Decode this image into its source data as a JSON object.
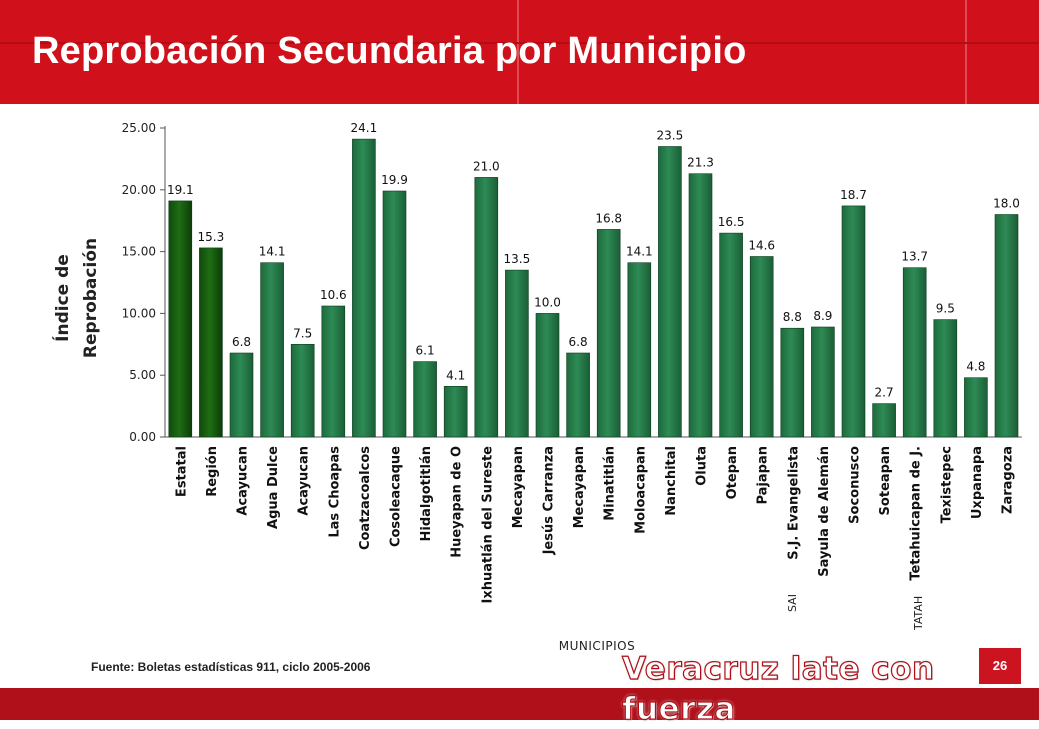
{
  "header": {
    "title": "Reprobación Secundaria por Municipio"
  },
  "colors": {
    "header_red": "#d0101a",
    "bar_dark_green": "#1f6e14",
    "bar_green": "#2e8b55",
    "footer_red": "#b0101a"
  },
  "chart_data": {
    "type": "bar",
    "title": "",
    "xlabel": "MUNICIPIOS",
    "ylabel": "Índice de Reprobación",
    "ylim": [
      0,
      25
    ],
    "yticks": [
      "0.00",
      "5.00",
      "10.00",
      "15.00",
      "20.00",
      "25.00"
    ],
    "grid": false,
    "categories": [
      "Estatal",
      "Región",
      "Acayucan",
      "Agua Dulce",
      "Acayucan",
      "Las Choapas",
      "Coatzacoalcos",
      "Cosoleacaque",
      "Hidalgotitlán",
      "Hueyapan de O",
      "Ixhuatlán del Sureste",
      "Mecayapan",
      "Jesús Carranza",
      "Mecayapan",
      "Minatitlán",
      "Moloacapan",
      "Nanchital",
      "Oluta",
      "Otepan",
      "Pajapan",
      "S.J. Evangelista",
      "Sayula de Alemán",
      "Soconusco",
      "Soteapan",
      "Tetahuicapan de J.",
      "Texistepec",
      "Uxpanapa",
      "Zaragoza"
    ],
    "values": [
      19.1,
      15.3,
      6.8,
      14.1,
      7.5,
      10.6,
      24.1,
      19.9,
      6.1,
      4.1,
      21.0,
      13.5,
      10.0,
      6.8,
      16.8,
      14.1,
      23.5,
      21.3,
      16.5,
      14.6,
      8.8,
      8.9,
      18.7,
      2.7,
      13.7,
      9.5,
      4.8,
      18.0
    ],
    "data_labels": [
      "19.1",
      "15.3",
      "6.8",
      "14.1",
      "7.5",
      "10.6",
      "24.1",
      "19.9",
      "6.1",
      "4.1",
      "21.0",
      "13.5",
      "10.0",
      "6.8",
      "16.8",
      "14.1",
      "23.5",
      "21.3",
      "16.5",
      "14.6",
      "8.8",
      "8.9",
      "18.7",
      "2.7",
      "13.7",
      "9.5",
      "4.8",
      "18.0"
    ],
    "highlighted": [
      true,
      true,
      false,
      false,
      false,
      false,
      false,
      false,
      false,
      false,
      false,
      false,
      false,
      false,
      false,
      false,
      false,
      false,
      false,
      false,
      false,
      false,
      false,
      false,
      false,
      false,
      false,
      false
    ],
    "stray_labels": [
      "SAI",
      "TATAH"
    ]
  },
  "footer": {
    "source": "Fuente: Boletas estadísticas 911, ciclo 2005-2006",
    "slogan": "Veracruz late con fuerza",
    "page_number": "26"
  }
}
